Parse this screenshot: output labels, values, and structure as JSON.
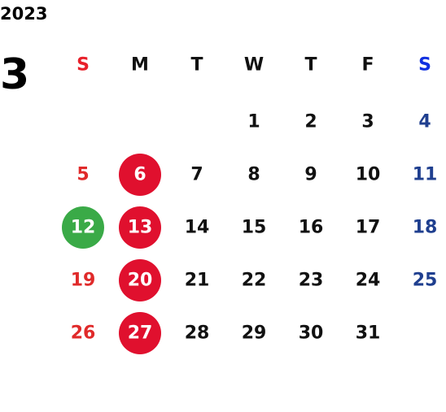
{
  "calendar": {
    "year": "2023",
    "month": "3",
    "weekdays": [
      "S",
      "M",
      "T",
      "W",
      "T",
      "F",
      "S"
    ],
    "weekday_colors": [
      "#e8202a",
      "#111111",
      "#111111",
      "#111111",
      "#111111",
      "#111111",
      "#1030e0"
    ],
    "day_colors": [
      "#e02a2a",
      "#111111",
      "#111111",
      "#111111",
      "#111111",
      "#111111",
      "#1f3f8f"
    ],
    "weeks": [
      [
        null,
        null,
        null,
        1,
        2,
        3,
        4
      ],
      [
        5,
        {
          "day": 6,
          "circle": "#e0102e"
        },
        7,
        8,
        9,
        10,
        11
      ],
      [
        {
          "day": 12,
          "circle": "#3aaa47"
        },
        {
          "day": 13,
          "circle": "#e0102e"
        },
        14,
        15,
        16,
        17,
        18
      ],
      [
        19,
        {
          "day": 20,
          "circle": "#e0102e"
        },
        21,
        22,
        23,
        24,
        25
      ],
      [
        26,
        {
          "day": 27,
          "circle": "#e0102e"
        },
        28,
        29,
        30,
        31,
        null
      ]
    ]
  }
}
